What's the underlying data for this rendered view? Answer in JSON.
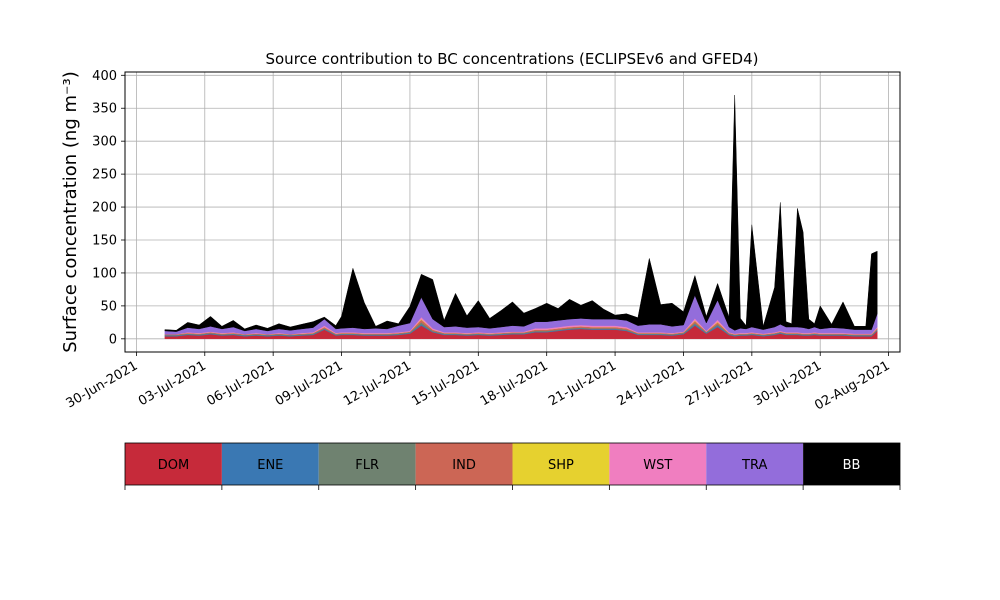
{
  "chart_data": {
    "type": "area",
    "stacked": true,
    "title": "Source contribution to BC concentrations (ECLIPSEv6 and GFED4)",
    "ylabel": "Surface concentration (ng m⁻³)",
    "xlabel": "",
    "grid": true,
    "ylim": [
      -20,
      405
    ],
    "xlim": [
      "2021-06-29T12:00",
      "2021-08-02T12:00"
    ],
    "yticks": [
      0,
      50,
      100,
      150,
      200,
      250,
      300,
      350,
      400
    ],
    "xticks": [
      "30-Jun-2021",
      "03-Jul-2021",
      "06-Jul-2021",
      "09-Jul-2021",
      "12-Jul-2021",
      "15-Jul-2021",
      "18-Jul-2021",
      "21-Jul-2021",
      "24-Jul-2021",
      "27-Jul-2021",
      "30-Jul-2021",
      "02-Aug-2021"
    ],
    "legend_position": "bottom",
    "series_names": [
      "DOM",
      "ENE",
      "FLR",
      "IND",
      "SHP",
      "WST",
      "TRA",
      "BB"
    ],
    "colors": {
      "DOM": "#c62a3a",
      "ENE": "#3a78b3",
      "FLR": "#6f8270",
      "IND": "#cc6655",
      "SHP": "#e6d12f",
      "WST": "#f07ec0",
      "TRA": "#936ddb",
      "BB": "#000000"
    },
    "x": [
      "2021-07-01T06:00",
      "2021-07-01T18:00",
      "2021-07-02T06:00",
      "2021-07-02T18:00",
      "2021-07-03T06:00",
      "2021-07-03T18:00",
      "2021-07-04T06:00",
      "2021-07-04T18:00",
      "2021-07-05T06:00",
      "2021-07-05T18:00",
      "2021-07-06T06:00",
      "2021-07-06T18:00",
      "2021-07-07T06:00",
      "2021-07-07T18:00",
      "2021-07-08T06:00",
      "2021-07-08T18:00",
      "2021-07-09T00:00",
      "2021-07-09T12:00",
      "2021-07-10T00:00",
      "2021-07-10T12:00",
      "2021-07-11T00:00",
      "2021-07-11T12:00",
      "2021-07-12T00:00",
      "2021-07-12T12:00",
      "2021-07-13T00:00",
      "2021-07-13T12:00",
      "2021-07-14T00:00",
      "2021-07-14T12:00",
      "2021-07-15T00:00",
      "2021-07-15T12:00",
      "2021-07-16T00:00",
      "2021-07-16T12:00",
      "2021-07-17T00:00",
      "2021-07-17T12:00",
      "2021-07-18T00:00",
      "2021-07-18T12:00",
      "2021-07-19T00:00",
      "2021-07-19T12:00",
      "2021-07-20T00:00",
      "2021-07-20T12:00",
      "2021-07-21T00:00",
      "2021-07-21T12:00",
      "2021-07-22T00:00",
      "2021-07-22T12:00",
      "2021-07-23T00:00",
      "2021-07-23T12:00",
      "2021-07-24T00:00",
      "2021-07-24T12:00",
      "2021-07-25T00:00",
      "2021-07-25T12:00",
      "2021-07-26T00:00",
      "2021-07-26T06:00",
      "2021-07-26T12:00",
      "2021-07-26T18:00",
      "2021-07-27T00:00",
      "2021-07-27T12:00",
      "2021-07-28T00:00",
      "2021-07-28T06:00",
      "2021-07-28T12:00",
      "2021-07-28T18:00",
      "2021-07-29T00:00",
      "2021-07-29T06:00",
      "2021-07-29T12:00",
      "2021-07-29T18:00",
      "2021-07-30T00:00",
      "2021-07-30T12:00",
      "2021-07-31T00:00",
      "2021-07-31T12:00",
      "2021-08-01T00:00",
      "2021-08-01T06:00",
      "2021-08-01T12:00"
    ],
    "series": [
      {
        "name": "DOM",
        "values": [
          4,
          4,
          6,
          5,
          7,
          5,
          6,
          4,
          5,
          4,
          5,
          4,
          5,
          6,
          14,
          5,
          6,
          6,
          5,
          5,
          5,
          6,
          8,
          20,
          10,
          6,
          6,
          5,
          6,
          5,
          6,
          7,
          7,
          10,
          10,
          12,
          14,
          15,
          14,
          14,
          14,
          12,
          6,
          6,
          6,
          5,
          7,
          20,
          8,
          18,
          6,
          4,
          5,
          5,
          6,
          4,
          6,
          8,
          6,
          6,
          6,
          5,
          5,
          6,
          5,
          5,
          5,
          4,
          4,
          4,
          12
        ]
      },
      {
        "name": "ENE",
        "values": [
          1,
          1,
          1,
          1,
          1,
          1,
          1,
          1,
          1,
          1,
          1,
          1,
          1,
          1,
          1,
          1,
          1,
          1,
          1,
          1,
          1,
          1,
          1,
          2,
          1,
          1,
          1,
          1,
          1,
          1,
          1,
          1,
          1,
          1,
          1,
          1,
          1,
          1,
          1,
          1,
          1,
          1,
          1,
          1,
          1,
          1,
          1,
          2,
          1,
          2,
          1,
          1,
          1,
          1,
          1,
          1,
          1,
          1,
          1,
          1,
          1,
          1,
          1,
          1,
          1,
          1,
          1,
          1,
          1,
          1,
          1
        ]
      },
      {
        "name": "FLR",
        "values": [
          1,
          1,
          1,
          1,
          1,
          1,
          1,
          1,
          1,
          1,
          1,
          1,
          1,
          1,
          1,
          1,
          1,
          1,
          1,
          1,
          1,
          1,
          1,
          3,
          1,
          1,
          1,
          1,
          1,
          1,
          1,
          1,
          1,
          1,
          1,
          1,
          1,
          1,
          1,
          1,
          1,
          1,
          1,
          1,
          1,
          1,
          1,
          2,
          1,
          2,
          1,
          1,
          1,
          1,
          1,
          1,
          1,
          1,
          1,
          1,
          1,
          1,
          1,
          1,
          1,
          1,
          1,
          1,
          1,
          1,
          1
        ]
      },
      {
        "name": "IND",
        "values": [
          1,
          1,
          1,
          1,
          1,
          1,
          1,
          1,
          1,
          1,
          1,
          1,
          1,
          1,
          2,
          1,
          1,
          1,
          1,
          1,
          1,
          1,
          1,
          4,
          2,
          1,
          1,
          1,
          1,
          1,
          1,
          1,
          1,
          2,
          2,
          2,
          2,
          2,
          2,
          2,
          2,
          2,
          1,
          1,
          1,
          1,
          1,
          3,
          1,
          3,
          1,
          1,
          1,
          1,
          1,
          1,
          1,
          1,
          1,
          1,
          1,
          1,
          1,
          1,
          1,
          1,
          1,
          1,
          1,
          1,
          2
        ]
      },
      {
        "name": "SHP",
        "values": [
          0,
          0,
          0,
          0,
          0,
          0,
          0,
          0,
          0,
          0,
          0,
          0,
          0,
          0,
          0,
          0,
          0,
          0,
          0,
          0,
          0,
          0,
          0,
          1,
          0,
          0,
          0,
          0,
          0,
          0,
          0,
          0,
          0,
          0,
          0,
          0,
          0,
          0,
          0,
          0,
          0,
          0,
          0,
          0,
          0,
          0,
          0,
          1,
          0,
          1,
          0,
          0,
          0,
          0,
          0,
          0,
          0,
          0,
          0,
          0,
          0,
          0,
          0,
          0,
          0,
          0,
          0,
          0,
          0,
          0,
          0
        ]
      },
      {
        "name": "WST",
        "values": [
          0,
          0,
          1,
          1,
          1,
          1,
          1,
          0,
          1,
          0,
          1,
          0,
          1,
          1,
          2,
          1,
          1,
          1,
          1,
          1,
          1,
          1,
          1,
          3,
          2,
          1,
          1,
          1,
          1,
          1,
          1,
          1,
          1,
          2,
          2,
          2,
          2,
          2,
          2,
          2,
          2,
          2,
          1,
          1,
          1,
          1,
          1,
          3,
          1,
          3,
          1,
          1,
          1,
          1,
          1,
          1,
          1,
          1,
          1,
          1,
          1,
          1,
          1,
          1,
          1,
          1,
          1,
          1,
          1,
          1,
          2
        ]
      },
      {
        "name": "TRA",
        "values": [
          5,
          4,
          7,
          6,
          8,
          6,
          8,
          5,
          6,
          5,
          6,
          6,
          6,
          7,
          10,
          6,
          6,
          7,
          6,
          7,
          6,
          10,
          12,
          30,
          14,
          8,
          9,
          8,
          8,
          7,
          8,
          9,
          8,
          10,
          10,
          10,
          10,
          10,
          10,
          10,
          10,
          10,
          10,
          12,
          12,
          10,
          10,
          35,
          12,
          30,
          8,
          5,
          7,
          6,
          8,
          6,
          8,
          10,
          8,
          8,
          8,
          8,
          6,
          8,
          6,
          8,
          7,
          6,
          6,
          6,
          20
        ]
      },
      {
        "name": "BB",
        "values": [
          2,
          2,
          8,
          6,
          15,
          4,
          10,
          3,
          6,
          4,
          8,
          5,
          7,
          9,
          3,
          5,
          18,
          90,
          40,
          3,
          12,
          3,
          25,
          35,
          60,
          10,
          50,
          18,
          40,
          15,
          25,
          36,
          20,
          20,
          28,
          18,
          30,
          20,
          28,
          15,
          6,
          10,
          12,
          100,
          30,
          35,
          20,
          30,
          10,
          25,
          15,
          357,
          15,
          5,
          155,
          5,
          60,
          185,
          8,
          5,
          180,
          145,
          15,
          5,
          35,
          5,
          40,
          5,
          5,
          115,
          95
        ]
      }
    ]
  }
}
